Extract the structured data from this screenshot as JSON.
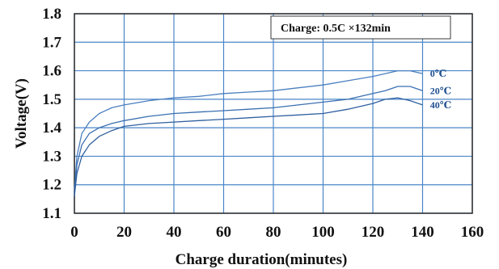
{
  "chart_data": {
    "type": "line",
    "title": "",
    "xlabel": "Charge duration(minutes)",
    "ylabel": "Voltage(V)",
    "xlim": [
      0,
      160
    ],
    "ylim": [
      1.1,
      1.8
    ],
    "x_ticks": [
      "0",
      "20",
      "40",
      "60",
      "80",
      "100",
      "120",
      "140",
      "160"
    ],
    "y_ticks": [
      "1.1",
      "1.2",
      "1.3",
      "1.4",
      "1.5",
      "1.6",
      "1.7",
      "1.8"
    ],
    "grid": true,
    "annotation": "Charge: 0.5C ×132min",
    "series": [
      {
        "name": "0℃",
        "color": "#4a7fc0",
        "x": [
          0,
          1,
          3,
          6,
          10,
          15,
          20,
          30,
          40,
          50,
          60,
          70,
          80,
          90,
          100,
          110,
          120,
          125,
          130,
          135,
          140
        ],
        "y": [
          1.18,
          1.3,
          1.38,
          1.42,
          1.45,
          1.47,
          1.48,
          1.495,
          1.505,
          1.51,
          1.52,
          1.525,
          1.53,
          1.54,
          1.55,
          1.565,
          1.58,
          1.59,
          1.6,
          1.6,
          1.59
        ]
      },
      {
        "name": "20℃",
        "color": "#3a6fb0",
        "x": [
          0,
          1,
          3,
          6,
          10,
          15,
          20,
          30,
          40,
          50,
          60,
          70,
          80,
          90,
          100,
          110,
          120,
          125,
          130,
          135,
          140
        ],
        "y": [
          1.17,
          1.27,
          1.34,
          1.38,
          1.4,
          1.415,
          1.425,
          1.44,
          1.45,
          1.455,
          1.46,
          1.465,
          1.47,
          1.48,
          1.49,
          1.5,
          1.52,
          1.53,
          1.545,
          1.545,
          1.53
        ]
      },
      {
        "name": "40℃",
        "color": "#2f5f9f",
        "x": [
          0,
          1,
          3,
          6,
          10,
          15,
          20,
          30,
          40,
          50,
          60,
          70,
          80,
          90,
          100,
          110,
          120,
          125,
          130,
          135,
          140
        ],
        "y": [
          1.16,
          1.24,
          1.3,
          1.34,
          1.37,
          1.39,
          1.405,
          1.415,
          1.42,
          1.425,
          1.43,
          1.435,
          1.44,
          1.445,
          1.45,
          1.465,
          1.485,
          1.5,
          1.505,
          1.495,
          1.48
        ]
      }
    ]
  }
}
